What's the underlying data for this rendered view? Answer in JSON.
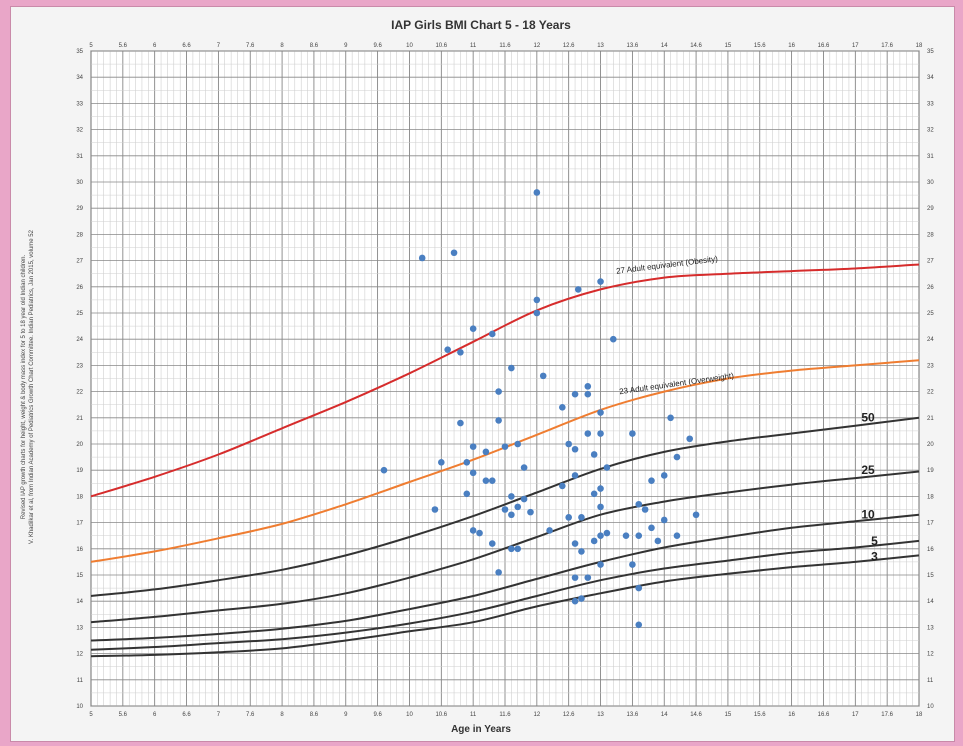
{
  "chart_data": {
    "type": "scatter",
    "title": "IAP Girls BMI Chart 5 - 18 Years",
    "xlabel": "Age in Years",
    "ylabel": "",
    "xlim": [
      5,
      18
    ],
    "ylim": [
      10,
      35
    ],
    "grid": true,
    "side_note": [
      "Revised IAP growth charts for height, weight & body mass index for 5 to 18 year old Indian children.",
      "V. Khadilkar et al, from Indian Academy of Pediatrics Growth Chart Committee. Indian Pediatrics, Jan 2015, volume 52"
    ],
    "x_ticks": [
      "5",
      "5.6",
      "6",
      "6.6",
      "7",
      "7.6",
      "8",
      "8.6",
      "9",
      "9.6",
      "10",
      "10.6",
      "11",
      "11.6",
      "12",
      "12.6",
      "13",
      "13.6",
      "14",
      "14.6",
      "15",
      "15.6",
      "16",
      "16.6",
      "17",
      "17.6",
      "18"
    ],
    "y_ticks": [
      "10",
      "11",
      "12",
      "13",
      "14",
      "15",
      "16",
      "17",
      "18",
      "19",
      "20",
      "21",
      "22",
      "23",
      "24",
      "25",
      "26",
      "27",
      "28",
      "29",
      "30",
      "31",
      "32",
      "33",
      "34",
      "35"
    ],
    "colors": {
      "obesity": "#d62c2c",
      "overweight": "#ef7d31",
      "percentile": "#333333",
      "points": "#4a7fc1"
    },
    "curves": [
      {
        "key": "c3",
        "label": "3",
        "color": "#333333",
        "x": [
          5,
          6,
          7,
          8,
          9,
          10,
          11,
          12,
          13,
          14,
          15,
          16,
          17,
          18
        ],
        "y": [
          11.9,
          11.95,
          12.05,
          12.2,
          12.5,
          12.85,
          13.2,
          13.8,
          14.3,
          14.75,
          15.05,
          15.3,
          15.5,
          15.75
        ]
      },
      {
        "key": "c5",
        "label": "5",
        "color": "#333333",
        "x": [
          5,
          6,
          7,
          8,
          9,
          10,
          11,
          12,
          13,
          14,
          15,
          16,
          17,
          18
        ],
        "y": [
          12.15,
          12.25,
          12.4,
          12.55,
          12.8,
          13.15,
          13.6,
          14.2,
          14.8,
          15.25,
          15.55,
          15.85,
          16.05,
          16.3
        ]
      },
      {
        "key": "c10",
        "label": "10",
        "color": "#333333",
        "x": [
          5,
          6,
          7,
          8,
          9,
          10,
          11,
          12,
          13,
          14,
          15,
          16,
          17,
          18
        ],
        "y": [
          12.5,
          12.6,
          12.75,
          12.95,
          13.25,
          13.7,
          14.2,
          14.85,
          15.5,
          16.05,
          16.45,
          16.8,
          17.05,
          17.3
        ]
      },
      {
        "key": "c25",
        "label": "25",
        "color": "#333333",
        "x": [
          5,
          6,
          7,
          8,
          9,
          10,
          11,
          12,
          13,
          14,
          15,
          16,
          17,
          18
        ],
        "y": [
          13.2,
          13.4,
          13.65,
          13.9,
          14.3,
          14.9,
          15.6,
          16.45,
          17.3,
          17.8,
          18.15,
          18.45,
          18.7,
          18.95
        ]
      },
      {
        "key": "c50",
        "label": "50",
        "color": "#333333",
        "x": [
          5,
          6,
          7,
          8,
          9,
          10,
          11,
          12,
          13,
          14,
          15,
          16,
          17,
          18
        ],
        "y": [
          14.2,
          14.45,
          14.8,
          15.2,
          15.75,
          16.45,
          17.25,
          18.15,
          19.05,
          19.7,
          20.1,
          20.4,
          20.7,
          21.0
        ]
      },
      {
        "key": "ow",
        "label": "23 Adult equivalent (Overweight)",
        "color": "#ef7d31",
        "x": [
          5,
          6,
          7,
          8,
          9,
          10,
          11,
          12,
          13,
          14,
          15,
          16,
          17,
          18
        ],
        "y": [
          15.5,
          15.9,
          16.4,
          16.95,
          17.7,
          18.55,
          19.4,
          20.35,
          21.3,
          22.0,
          22.5,
          22.8,
          23.0,
          23.2
        ]
      },
      {
        "key": "ob",
        "label": "27 Adult equivalent (Obesity)",
        "color": "#d62c2c",
        "x": [
          5,
          6,
          7,
          8,
          9,
          10,
          11,
          12,
          13,
          14,
          15,
          16,
          17,
          18
        ],
        "y": [
          18.0,
          18.75,
          19.6,
          20.6,
          21.6,
          22.7,
          23.9,
          25.1,
          25.9,
          26.35,
          26.5,
          26.6,
          26.7,
          26.85
        ]
      }
    ],
    "points": [
      [
        10.2,
        27.1
      ],
      [
        10.7,
        27.3
      ],
      [
        12.0,
        29.6
      ],
      [
        13.0,
        26.2
      ],
      [
        12.65,
        25.9
      ],
      [
        12.0,
        25.5
      ],
      [
        12.0,
        25.0
      ],
      [
        10.6,
        23.6
      ],
      [
        10.8,
        23.5
      ],
      [
        11.0,
        24.4
      ],
      [
        11.3,
        24.2
      ],
      [
        13.2,
        24.0
      ],
      [
        12.1,
        22.6
      ],
      [
        11.6,
        22.9
      ],
      [
        11.4,
        22.0
      ],
      [
        12.6,
        21.9
      ],
      [
        12.8,
        21.9
      ],
      [
        12.8,
        22.2
      ],
      [
        12.4,
        21.4
      ],
      [
        13.0,
        21.2
      ],
      [
        14.1,
        21.0
      ],
      [
        10.8,
        20.8
      ],
      [
        11.4,
        20.9
      ],
      [
        9.6,
        19.0
      ],
      [
        10.5,
        19.3
      ],
      [
        10.9,
        19.3
      ],
      [
        11.0,
        19.9
      ],
      [
        11.2,
        19.7
      ],
      [
        11.5,
        19.9
      ],
      [
        11.7,
        20.0
      ],
      [
        11.8,
        19.1
      ],
      [
        12.5,
        20.0
      ],
      [
        12.6,
        19.8
      ],
      [
        12.8,
        20.4
      ],
      [
        12.9,
        19.6
      ],
      [
        13.0,
        20.4
      ],
      [
        13.1,
        19.1
      ],
      [
        13.5,
        20.4
      ],
      [
        14.2,
        19.5
      ],
      [
        14.4,
        20.2
      ],
      [
        14.0,
        18.8
      ],
      [
        13.8,
        18.6
      ],
      [
        12.4,
        18.4
      ],
      [
        12.6,
        18.8
      ],
      [
        12.9,
        18.1
      ],
      [
        13.0,
        18.3
      ],
      [
        11.0,
        18.9
      ],
      [
        11.2,
        18.6
      ],
      [
        11.3,
        18.6
      ],
      [
        10.9,
        18.1
      ],
      [
        11.6,
        18.0
      ],
      [
        11.8,
        17.9
      ],
      [
        11.7,
        17.6
      ],
      [
        11.5,
        17.5
      ],
      [
        11.6,
        17.3
      ],
      [
        10.4,
        17.5
      ],
      [
        11.9,
        17.4
      ],
      [
        12.2,
        16.7
      ],
      [
        12.5,
        17.2
      ],
      [
        12.7,
        17.2
      ],
      [
        13.0,
        17.6
      ],
      [
        13.6,
        17.7
      ],
      [
        13.7,
        17.5
      ],
      [
        14.5,
        17.3
      ],
      [
        14.0,
        17.1
      ],
      [
        13.4,
        16.5
      ],
      [
        13.8,
        16.8
      ],
      [
        14.2,
        16.5
      ],
      [
        11.0,
        16.7
      ],
      [
        11.1,
        16.6
      ],
      [
        11.3,
        16.2
      ],
      [
        11.6,
        16.0
      ],
      [
        11.7,
        16.0
      ],
      [
        12.6,
        16.2
      ],
      [
        12.7,
        15.9
      ],
      [
        12.9,
        16.3
      ],
      [
        13.1,
        16.6
      ],
      [
        13.0,
        16.5
      ],
      [
        13.6,
        16.5
      ],
      [
        13.9,
        16.3
      ],
      [
        11.4,
        15.1
      ],
      [
        12.6,
        14.9
      ],
      [
        12.8,
        14.9
      ],
      [
        13.0,
        15.4
      ],
      [
        13.5,
        15.4
      ],
      [
        13.6,
        14.5
      ],
      [
        12.6,
        14.0
      ],
      [
        12.7,
        14.1
      ],
      [
        13.6,
        13.1
      ]
    ]
  }
}
